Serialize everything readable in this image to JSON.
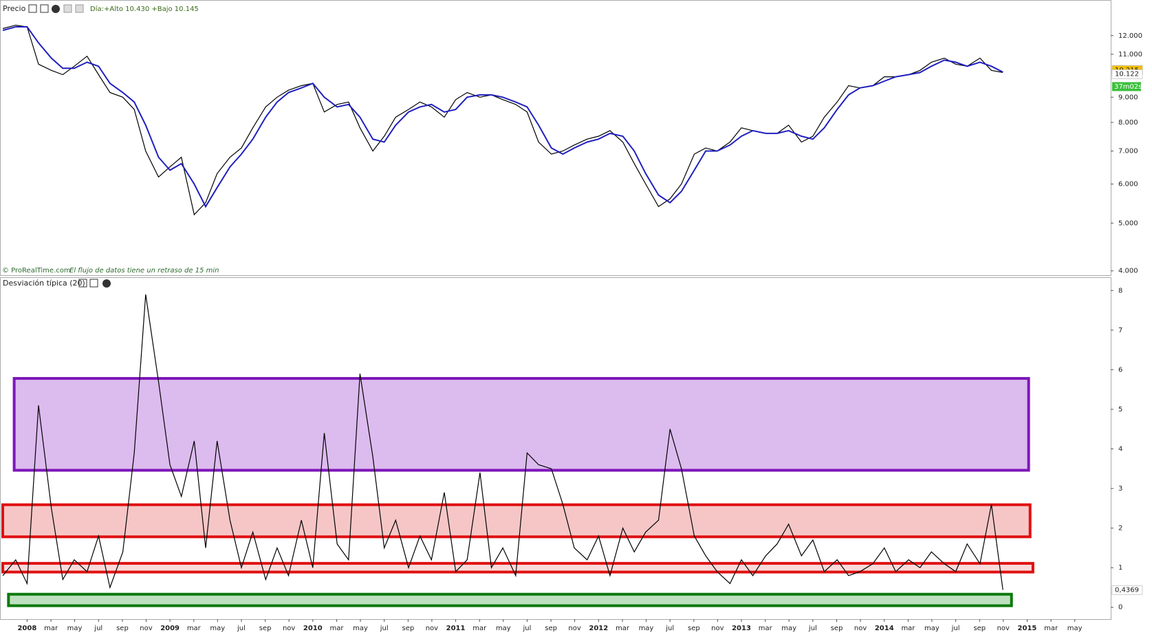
{
  "chart_data": [
    {
      "type": "line",
      "title": "Precio",
      "subtitle": "Día:+Alto 10.430 +Bajo 10.145",
      "annotations": [
        "© ProRealTime.com",
        "El flujo de datos tiene un retraso de 15 min"
      ],
      "log_scale": true,
      "grid": false,
      "xlim": [
        2007.82,
        2015.585
      ],
      "ylim": [
        3.92,
        13.9
      ],
      "yticks": [
        {
          "value": 4,
          "label": "4.000"
        },
        {
          "value": 5,
          "label": "5.000"
        },
        {
          "value": 6,
          "label": "6.000"
        },
        {
          "value": 7,
          "label": "7.000"
        },
        {
          "value": 8,
          "label": "8.000"
        },
        {
          "value": 9,
          "label": "9.000"
        },
        {
          "value": 11,
          "label": "11.000"
        },
        {
          "value": 12,
          "label": "12.000"
        }
      ],
      "x": [
        2007.83,
        2007.92,
        2008.0,
        2008.08,
        2008.17,
        2008.25,
        2008.33,
        2008.42,
        2008.5,
        2008.58,
        2008.67,
        2008.75,
        2008.83,
        2008.92,
        2009.0,
        2009.08,
        2009.17,
        2009.25,
        2009.33,
        2009.42,
        2009.5,
        2009.58,
        2009.67,
        2009.75,
        2009.83,
        2009.92,
        2010.0,
        2010.08,
        2010.17,
        2010.25,
        2010.33,
        2010.42,
        2010.5,
        2010.58,
        2010.67,
        2010.75,
        2010.83,
        2010.92,
        2011.0,
        2011.08,
        2011.17,
        2011.25,
        2011.33,
        2011.42,
        2011.5,
        2011.58,
        2011.67,
        2011.75,
        2011.83,
        2011.92,
        2012.0,
        2012.08,
        2012.17,
        2012.25,
        2012.33,
        2012.42,
        2012.5,
        2012.58,
        2012.67,
        2012.75,
        2012.83,
        2012.92,
        2013.0,
        2013.08,
        2013.17,
        2013.25,
        2013.33,
        2013.42,
        2013.5,
        2013.58,
        2013.67,
        2013.75,
        2013.83,
        2013.92,
        2014.0,
        2014.08,
        2014.17,
        2014.25,
        2014.33,
        2014.42,
        2014.5,
        2014.58,
        2014.67,
        2014.75,
        2014.83
      ],
      "series": [
        {
          "color": "#000000",
          "values": [
            12.4,
            12.6,
            12.5,
            10.5,
            10.2,
            10.0,
            10.4,
            10.9,
            10.0,
            9.2,
            9.0,
            8.5,
            7.0,
            6.2,
            6.5,
            6.8,
            5.2,
            5.5,
            6.3,
            6.8,
            7.1,
            7.8,
            8.6,
            9.0,
            9.3,
            9.5,
            9.6,
            8.4,
            8.7,
            8.8,
            7.8,
            7.0,
            7.5,
            8.2,
            8.5,
            8.8,
            8.6,
            8.2,
            8.9,
            9.2,
            9.0,
            9.1,
            8.9,
            8.7,
            8.4,
            7.3,
            6.9,
            7.0,
            7.2,
            7.4,
            7.5,
            7.7,
            7.3,
            6.6,
            6.0,
            5.4,
            5.6,
            6.0,
            6.9,
            7.1,
            7.0,
            7.3,
            7.8,
            7.7,
            7.6,
            7.6,
            7.9,
            7.3,
            7.5,
            8.2,
            8.8,
            9.5,
            9.4,
            9.5,
            9.9,
            9.9,
            10.0,
            10.2,
            10.6,
            10.8,
            10.5,
            10.4,
            10.8,
            10.2,
            10.1
          ]
        },
        {
          "color": "#1f1fbf",
          "values": [
            12.3,
            12.5,
            12.5,
            11.6,
            10.8,
            10.3,
            10.3,
            10.6,
            10.4,
            9.6,
            9.2,
            8.8,
            7.9,
            6.8,
            6.4,
            6.6,
            6.0,
            5.4,
            5.9,
            6.5,
            6.9,
            7.4,
            8.2,
            8.8,
            9.2,
            9.4,
            9.6,
            9.0,
            8.6,
            8.7,
            8.2,
            7.4,
            7.3,
            7.9,
            8.4,
            8.6,
            8.7,
            8.4,
            8.5,
            9.0,
            9.1,
            9.1,
            9.0,
            8.8,
            8.6,
            7.9,
            7.1,
            6.9,
            7.1,
            7.3,
            7.4,
            7.6,
            7.5,
            7.0,
            6.3,
            5.7,
            5.5,
            5.8,
            6.4,
            7.0,
            7.0,
            7.2,
            7.5,
            7.7,
            7.6,
            7.6,
            7.7,
            7.5,
            7.4,
            7.8,
            8.5,
            9.1,
            9.4,
            9.5,
            9.7,
            9.9,
            10.0,
            10.1,
            10.4,
            10.7,
            10.6,
            10.4,
            10.6,
            10.4,
            10.12
          ]
        }
      ],
      "last_labels": [
        {
          "value": 10.215,
          "label": "10.215",
          "color": "#f6c200"
        },
        {
          "value": 10.122,
          "label": "10.122",
          "color": "#ffffff"
        }
      ],
      "timer": "37m02s"
    },
    {
      "type": "line",
      "title": "Desviación típica (20)",
      "grid": false,
      "xlim": [
        2007.82,
        2015.585
      ],
      "ylim": [
        -0.3,
        8.3
      ],
      "yticks": [
        0,
        1,
        2,
        3,
        4,
        5,
        6,
        7,
        8
      ],
      "x": [
        2007.83,
        2007.92,
        2008.0,
        2008.08,
        2008.17,
        2008.25,
        2008.33,
        2008.42,
        2008.5,
        2008.58,
        2008.67,
        2008.75,
        2008.83,
        2008.92,
        2009.0,
        2009.08,
        2009.17,
        2009.25,
        2009.33,
        2009.42,
        2009.5,
        2009.58,
        2009.67,
        2009.75,
        2009.83,
        2009.92,
        2010.0,
        2010.08,
        2010.17,
        2010.25,
        2010.33,
        2010.42,
        2010.5,
        2010.58,
        2010.67,
        2010.75,
        2010.83,
        2010.92,
        2011.0,
        2011.08,
        2011.17,
        2011.25,
        2011.33,
        2011.42,
        2011.5,
        2011.58,
        2011.67,
        2011.75,
        2011.83,
        2011.92,
        2012.0,
        2012.08,
        2012.17,
        2012.25,
        2012.33,
        2012.42,
        2012.5,
        2012.58,
        2012.67,
        2012.75,
        2012.83,
        2012.92,
        2013.0,
        2013.08,
        2013.17,
        2013.25,
        2013.33,
        2013.42,
        2013.5,
        2013.58,
        2013.67,
        2013.75,
        2013.83,
        2013.92,
        2014.0,
        2014.08,
        2014.17,
        2014.25,
        2014.33,
        2014.42,
        2014.5,
        2014.58,
        2014.67,
        2014.75,
        2014.83
      ],
      "series": [
        {
          "color": "#000000",
          "values": [
            0.8,
            1.2,
            0.6,
            5.1,
            2.5,
            0.7,
            1.2,
            0.9,
            1.8,
            0.5,
            1.4,
            3.9,
            7.9,
            5.7,
            3.6,
            2.8,
            4.2,
            1.5,
            4.2,
            2.2,
            1.0,
            1.9,
            0.7,
            1.5,
            0.8,
            2.2,
            1.0,
            4.4,
            1.6,
            1.2,
            5.9,
            3.8,
            1.5,
            2.2,
            1.0,
            1.8,
            1.2,
            2.9,
            0.9,
            1.2,
            3.4,
            1.0,
            1.5,
            0.8,
            3.9,
            3.6,
            3.5,
            2.6,
            1.5,
            1.2,
            1.8,
            0.8,
            2.0,
            1.4,
            1.9,
            2.2,
            4.5,
            3.5,
            1.8,
            1.3,
            0.9,
            0.6,
            1.2,
            0.8,
            1.3,
            1.6,
            2.1,
            1.3,
            1.7,
            0.9,
            1.2,
            0.8,
            0.9,
            1.1,
            1.5,
            0.9,
            1.2,
            1.0,
            1.4,
            1.1,
            0.9,
            1.6,
            1.1,
            2.6,
            0.44
          ]
        }
      ],
      "bands": [
        {
          "x": [
            2007.9,
            2015.02
          ],
          "y": [
            3.46,
            5.78
          ],
          "color": "#7d16b8",
          "fill": "#dcbbee"
        },
        {
          "x": [
            2007.82,
            2015.03
          ],
          "y": [
            1.78,
            2.59
          ],
          "color": "#e01010",
          "fill": "#f6c6c6"
        },
        {
          "x": [
            2007.82,
            2015.05
          ],
          "y": [
            0.89,
            1.11
          ],
          "color": "#e01010",
          "fill": "#f9dada"
        },
        {
          "x": [
            2007.86,
            2014.9
          ],
          "y": [
            0.04,
            0.33
          ],
          "color": "#0a7a0a",
          "fill": "#bfe0bf"
        }
      ],
      "last_labels": [
        {
          "value": 0.4369,
          "label": "0,4369",
          "color": "#ffffff"
        }
      ],
      "xticks": [
        {
          "value": 2008,
          "label": "2008"
        },
        {
          "value": 2008.167,
          "label": "mar"
        },
        {
          "value": 2008.333,
          "label": "may"
        },
        {
          "value": 2008.5,
          "label": "jul"
        },
        {
          "value": 2008.667,
          "label": "sep"
        },
        {
          "value": 2008.833,
          "label": "nov"
        },
        {
          "value": 2009,
          "label": "2009"
        },
        {
          "value": 2009.167,
          "label": "mar"
        },
        {
          "value": 2009.333,
          "label": "may"
        },
        {
          "value": 2009.5,
          "label": "jul"
        },
        {
          "value": 2009.667,
          "label": "sep"
        },
        {
          "value": 2009.833,
          "label": "nov"
        },
        {
          "value": 2010,
          "label": "2010"
        },
        {
          "value": 2010.167,
          "label": "mar"
        },
        {
          "value": 2010.333,
          "label": "may"
        },
        {
          "value": 2010.5,
          "label": "jul"
        },
        {
          "value": 2010.667,
          "label": "sep"
        },
        {
          "value": 2010.833,
          "label": "nov"
        },
        {
          "value": 2011,
          "label": "2011"
        },
        {
          "value": 2011.167,
          "label": "mar"
        },
        {
          "value": 2011.333,
          "label": "may"
        },
        {
          "value": 2011.5,
          "label": "jul"
        },
        {
          "value": 2011.667,
          "label": "sep"
        },
        {
          "value": 2011.833,
          "label": "nov"
        },
        {
          "value": 2012,
          "label": "2012"
        },
        {
          "value": 2012.167,
          "label": "mar"
        },
        {
          "value": 2012.333,
          "label": "may"
        },
        {
          "value": 2012.5,
          "label": "jul"
        },
        {
          "value": 2012.667,
          "label": "sep"
        },
        {
          "value": 2012.833,
          "label": "nov"
        },
        {
          "value": 2013,
          "label": "2013"
        },
        {
          "value": 2013.167,
          "label": "mar"
        },
        {
          "value": 2013.333,
          "label": "may"
        },
        {
          "value": 2013.5,
          "label": "jul"
        },
        {
          "value": 2013.667,
          "label": "sep"
        },
        {
          "value": 2013.833,
          "label": "nov"
        },
        {
          "value": 2014,
          "label": "2014"
        },
        {
          "value": 2014.167,
          "label": "mar"
        },
        {
          "value": 2014.333,
          "label": "may"
        },
        {
          "value": 2014.5,
          "label": "jul"
        },
        {
          "value": 2014.667,
          "label": "sep"
        },
        {
          "value": 2014.833,
          "label": "nov"
        },
        {
          "value": 2015,
          "label": "2015"
        },
        {
          "value": 2015.167,
          "label": "mar"
        },
        {
          "value": 2015.333,
          "label": "may"
        }
      ]
    }
  ]
}
